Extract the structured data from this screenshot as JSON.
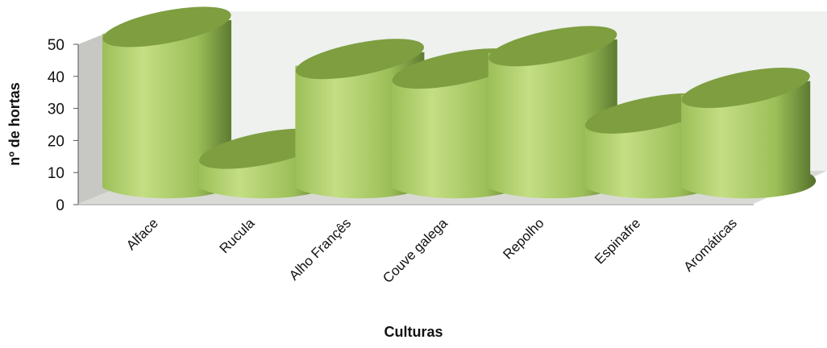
{
  "chart_data": {
    "type": "bar",
    "bar_shape": "cylinder-3d",
    "title": "",
    "xlabel": "Culturas",
    "ylabel": "nº de hortas",
    "categories": [
      "Alface",
      "Rucula",
      "Alho Françês",
      "Couve galega",
      "Repolho",
      "Espinafre",
      "Aromáticas"
    ],
    "values": [
      48,
      10,
      38,
      35,
      42,
      21,
      29
    ],
    "ylim": [
      0,
      50
    ],
    "yticks": [
      "0",
      "10",
      "20",
      "30",
      "40",
      "50"
    ],
    "grid": false,
    "legend": "none",
    "colors": {
      "bar_light": "#c4de84",
      "bar_mid": "#9cbf58",
      "bar_dark": "#53702a",
      "bar_top": "#7e9e40",
      "back_wall": "#eef1ee",
      "side_wall": "#c7c8c4",
      "floor": "#d9dad6"
    }
  }
}
